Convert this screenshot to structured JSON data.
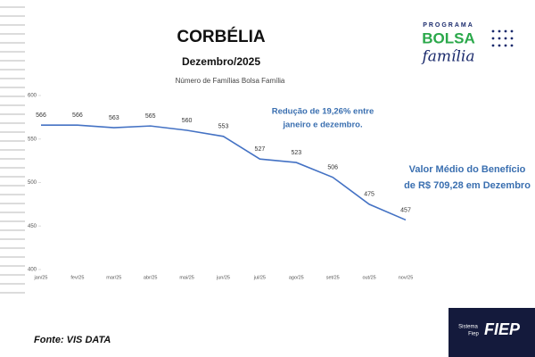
{
  "chart_data": {
    "type": "line",
    "title": "CORBÉLIA",
    "subtitle": "Dezembro/2025",
    "chart_label": "Número de Famílias Bolsa Família",
    "categories": [
      "jan/25",
      "fev/25",
      "mar/25",
      "abr/25",
      "mai/25",
      "jun/25",
      "jul/25",
      "ago/25",
      "set/25",
      "out/25",
      "nov/25"
    ],
    "values": [
      566,
      566,
      563,
      565,
      560,
      553,
      527,
      523,
      506,
      475,
      457
    ],
    "color": "#4472c4",
    "ylim": [
      400,
      600
    ],
    "yticks": [
      400,
      450,
      500,
      550,
      600
    ],
    "grid": false,
    "annotations": [
      [
        "Redução de 19,26% entre",
        "janeiro e dezembro."
      ],
      [
        "Valor Médio do Benefício",
        "de R$ 709,28 em Dezembro"
      ]
    ]
  },
  "source": "Fonte: VIS DATA",
  "logo": {
    "top": "PROGRAMA",
    "middle": "BOLSA",
    "bottom": "família"
  },
  "footer": {
    "small_1": "Sistema",
    "small_2": "Fiep",
    "brand": "FIEP"
  }
}
